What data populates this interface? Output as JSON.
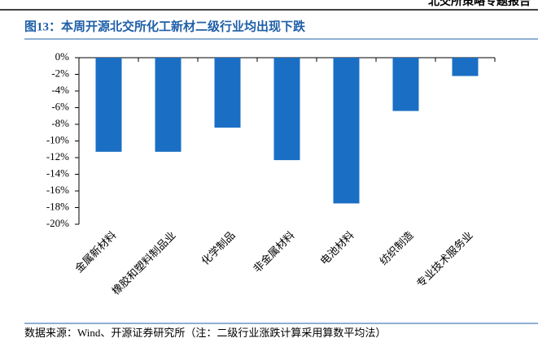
{
  "header": "北交所策略专题报告",
  "chart_data": {
    "type": "bar",
    "title": "图13：本周开源北交所化工新材二级行业均出现下跌",
    "categories": [
      "金属新材料",
      "橡胶和塑料制品业",
      "化学制品",
      "非金属材料",
      "电池材料",
      "纺织制造",
      "专业技术服务业"
    ],
    "values": [
      -11.3,
      -11.3,
      -8.4,
      -12.3,
      -17.5,
      -6.4,
      -2.2
    ],
    "color": "#1a6fc4",
    "ylim": [
      -20,
      0
    ],
    "yticks": [
      {
        "value": 0,
        "label": "0%"
      },
      {
        "value": -2,
        "label": "-2%"
      },
      {
        "value": -4,
        "label": "-4%"
      },
      {
        "value": -6,
        "label": "-6%"
      },
      {
        "value": -8,
        "label": "-8%"
      },
      {
        "value": -10,
        "label": "-10%"
      },
      {
        "value": -12,
        "label": "-12%"
      },
      {
        "value": -14,
        "label": "-14%"
      },
      {
        "value": -16,
        "label": "-16%"
      },
      {
        "value": -18,
        "label": "-18%"
      },
      {
        "value": -20,
        "label": "-20%"
      }
    ],
    "source": "数据来源：Wind、开源证券研究所（注：二级行业涨跌计算采用算数平均法）"
  }
}
